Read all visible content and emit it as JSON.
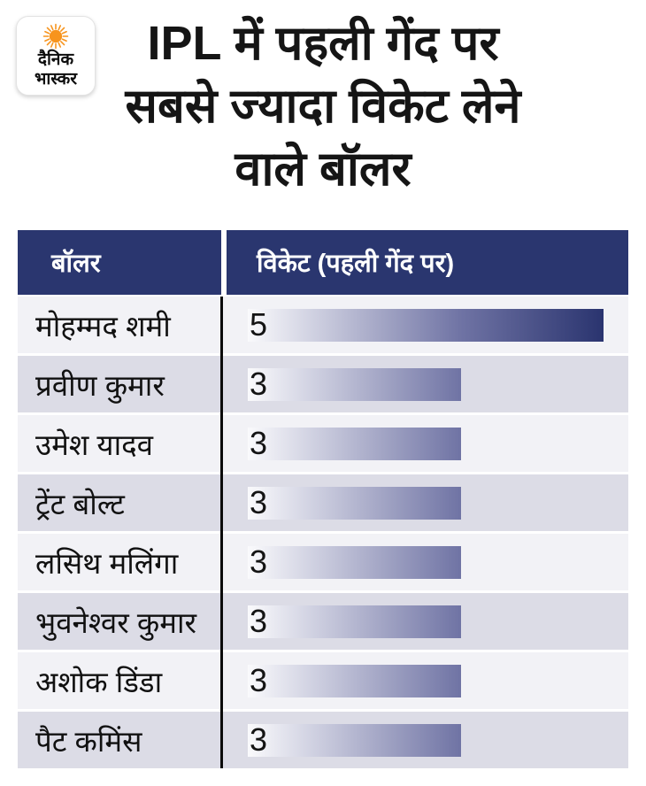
{
  "brand": {
    "name": "दैनिक भास्कर",
    "logo_line1": "दैनिक",
    "logo_line2": "भास्कर",
    "sun_color": "#F7941D"
  },
  "title": {
    "lines": [
      "IPL में पहली गेंद पर",
      "सबसे ज्यादा विकेट लेने",
      "वाले बॉलर"
    ]
  },
  "table": {
    "headers": {
      "bowler": "बॉलर",
      "wickets": "विकेट (पहली गेंद पर)"
    },
    "rows": [
      {
        "name": "मोहम्मद शमी",
        "value": 5
      },
      {
        "name": "प्रवीण कुमार",
        "value": 3
      },
      {
        "name": "उमेश यादव",
        "value": 3
      },
      {
        "name": "ट्रेंट बोल्ट",
        "value": 3
      },
      {
        "name": "लसिथ मलिंगा",
        "value": 3
      },
      {
        "name": "भुवनेश्वर कुमार",
        "value": 3
      },
      {
        "name": "अशोक डिंडा",
        "value": 3
      },
      {
        "name": "पैट कमिंस",
        "value": 3
      }
    ]
  },
  "chart_data": {
    "type": "bar",
    "orientation": "horizontal",
    "title": "IPL में पहली गेंद पर सबसे ज्यादा विकेट लेने वाले बॉलर",
    "categories": [
      "मोहम्मद शमी",
      "प्रवीण कुमार",
      "उमेश यादव",
      "ट्रेंट बोल्ट",
      "लसिथ मलिंगा",
      "भुवनेश्वर कुमार",
      "अशोक डिंडा",
      "पैट कमिंस"
    ],
    "values": [
      5,
      3,
      3,
      3,
      3,
      3,
      3,
      3
    ],
    "xlabel": "विकेट (पहली गेंद पर)",
    "ylabel": "बॉलर",
    "xlim": [
      0,
      5
    ],
    "grid": false,
    "legend": false,
    "data_labels": true
  },
  "colors": {
    "header_bg": "#2A366F",
    "row_light": "#F2F2F6",
    "row_dark": "#DCDCE6",
    "bar_gradient_start": "#FAFAFC",
    "bar_gradient_mid": "#6F73A4",
    "bar_gradient_end": "#2A346F",
    "divider": "#0B0B0B",
    "sun": "#F7941D"
  }
}
